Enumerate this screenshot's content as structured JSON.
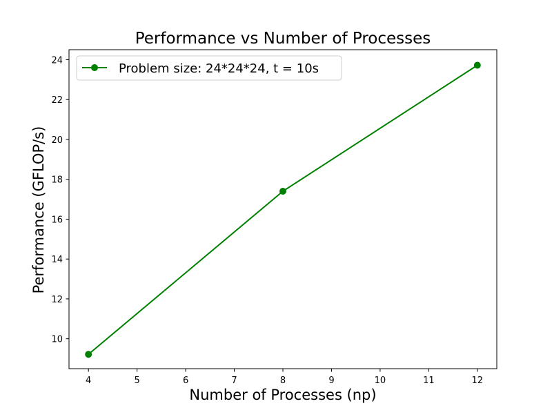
{
  "chart_data": {
    "type": "line",
    "title": "Performance vs Number of Processes",
    "xlabel": "Number of Processes (np)",
    "ylabel": "Performance (GFLOP/s)",
    "xlim": [
      3.6,
      12.4
    ],
    "ylim": [
      8.5,
      24.5
    ],
    "xticks": [
      4,
      5,
      6,
      7,
      8,
      9,
      10,
      11,
      12
    ],
    "yticks": [
      10,
      12,
      14,
      16,
      18,
      20,
      22,
      24
    ],
    "grid": false,
    "legend_position": "top-left",
    "series": [
      {
        "name": "Problem size: 24*24*24, t = 10s",
        "color": "#008000",
        "marker": "circle",
        "x": [
          4,
          8,
          12
        ],
        "y": [
          9.22,
          17.4,
          23.72
        ]
      }
    ]
  }
}
